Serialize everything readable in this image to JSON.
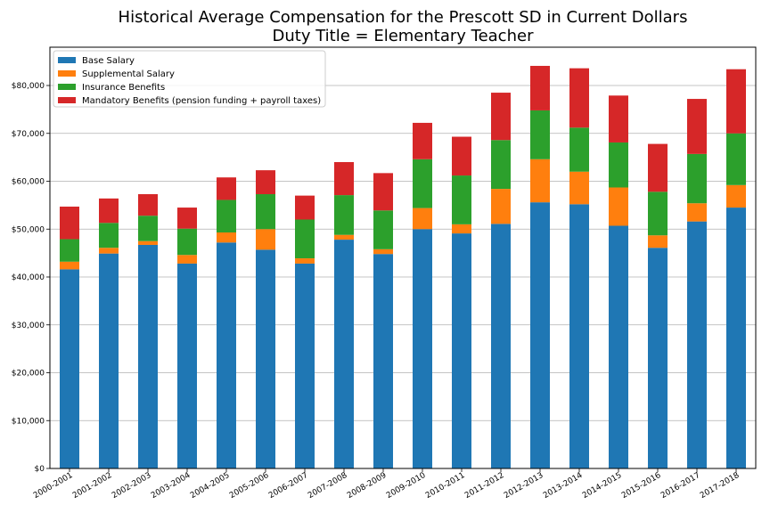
{
  "chart_data": {
    "type": "bar",
    "stacked": true,
    "title": "Historical Average Compensation for the Prescott SD in Current Dollars",
    "subtitle": "Duty Title = Elementary Teacher",
    "xlabel": "",
    "ylabel": "",
    "categories": [
      "2000-2001",
      "2001-2002",
      "2002-2003",
      "2003-2004",
      "2004-2005",
      "2005-2006",
      "2006-2007",
      "2007-2008",
      "2008-2009",
      "2009-2010",
      "2010-2011",
      "2011-2012",
      "2012-2013",
      "2013-2014",
      "2014-2015",
      "2015-2016",
      "2016-2017",
      "2017-2018"
    ],
    "ylim": [
      0,
      88000
    ],
    "yticks": [
      0,
      10000,
      20000,
      30000,
      40000,
      50000,
      60000,
      70000,
      80000
    ],
    "ytick_labels": [
      "$0",
      "$10,000",
      "$20,000",
      "$30,000",
      "$40,000",
      "$50,000",
      "$60,000",
      "$70,000",
      "$80,000"
    ],
    "grid": "horizontal",
    "legend_position": "top-left",
    "series": [
      {
        "name": "Base Salary",
        "color": "#1f77b4",
        "values": [
          41600,
          44900,
          46700,
          42800,
          47200,
          45700,
          42800,
          47800,
          44800,
          50000,
          49100,
          51100,
          55600,
          55200,
          50700,
          46100,
          51600,
          54500
        ]
      },
      {
        "name": "Supplemental Salary",
        "color": "#ff7f0e",
        "values": [
          1600,
          1200,
          800,
          1800,
          2100,
          4300,
          1100,
          1000,
          1000,
          4400,
          1900,
          7300,
          9000,
          6800,
          8000,
          2600,
          3800,
          4700
        ]
      },
      {
        "name": "Insurance Benefits",
        "color": "#2ca02c",
        "values": [
          4700,
          5200,
          5300,
          5500,
          6800,
          7300,
          8100,
          8300,
          8100,
          10200,
          10200,
          10200,
          10200,
          9200,
          9400,
          9100,
          10300,
          10800
        ]
      },
      {
        "name": "Mandatory Benefits (pension funding + payroll taxes)",
        "color": "#d62728",
        "values": [
          6800,
          5100,
          4500,
          4400,
          4700,
          5000,
          5000,
          6900,
          7800,
          7600,
          8100,
          9900,
          9300,
          12400,
          9800,
          10000,
          11500,
          13400
        ]
      }
    ]
  }
}
